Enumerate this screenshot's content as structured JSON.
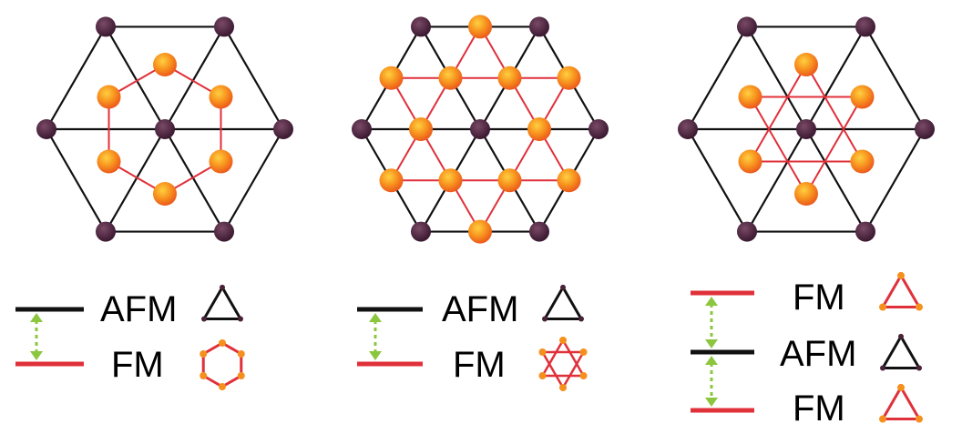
{
  "colors": {
    "black_bond": "#111111",
    "red_bond": "#e0303a",
    "dark_atom": "#4a2238",
    "orange_atom": "#f5901e",
    "arrow": "#8cc63f"
  },
  "panels": [
    {
      "lattice": "honeycomb-in-triangular",
      "legend": [
        {
          "line_color": "black",
          "text": "AFM",
          "icon": "triangle-afm-icon"
        },
        {
          "line_color": "red",
          "text": "FM",
          "icon": "hexagon-fm-icon"
        }
      ]
    },
    {
      "lattice": "kagome-in-triangular",
      "legend": [
        {
          "line_color": "black",
          "text": "AFM",
          "icon": "triangle-afm-icon"
        },
        {
          "line_color": "red",
          "text": "FM",
          "icon": "star-of-david-fm-icon"
        }
      ]
    },
    {
      "lattice": "star-in-triangular",
      "legend": [
        {
          "line_color": "red",
          "text": "FM",
          "icon": "triangle-fm-icon"
        },
        {
          "line_color": "black",
          "text": "AFM",
          "icon": "triangle-afm-icon"
        },
        {
          "line_color": "red",
          "text": "FM",
          "icon": "triangle-fm-icon"
        }
      ]
    }
  ]
}
